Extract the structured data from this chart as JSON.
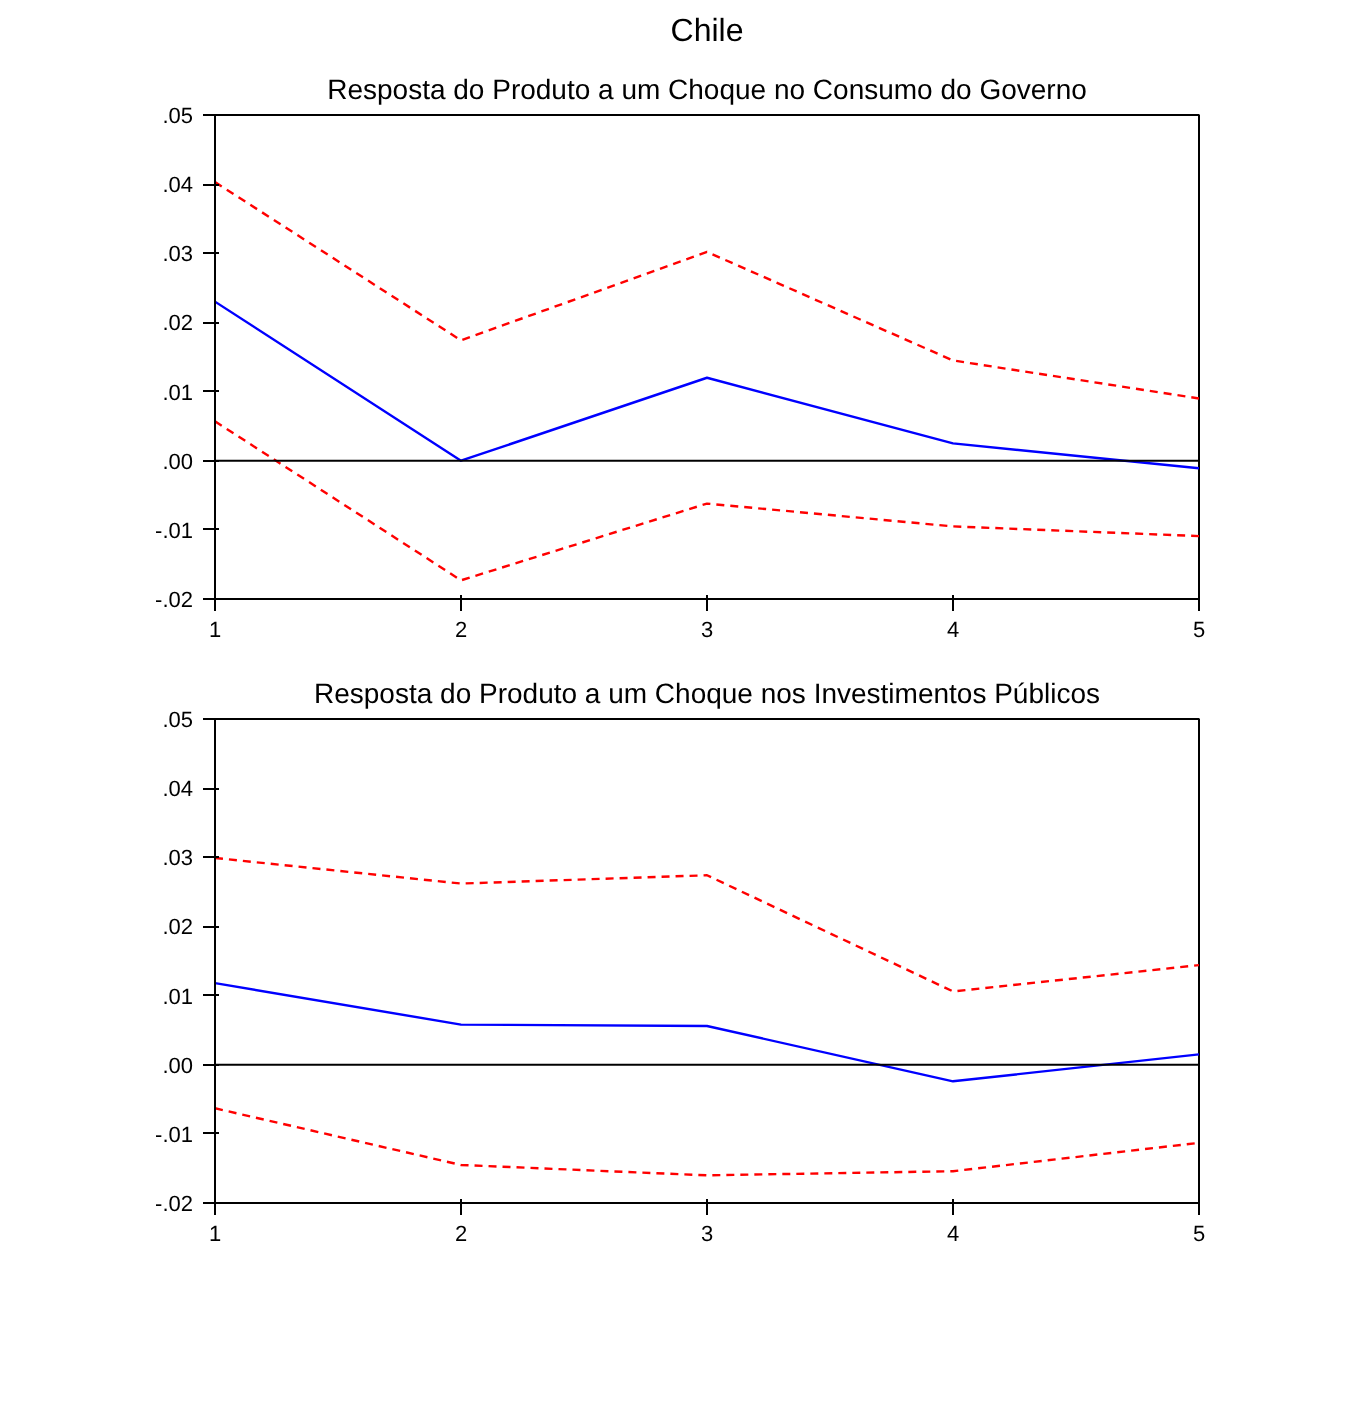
{
  "chart_data": [
    {
      "type": "line",
      "title": "Chile",
      "subtitle": "Resposta do Produto a um Choque no Consumo do Governo",
      "x": [
        1,
        2,
        3,
        4,
        5
      ],
      "xlim": [
        1,
        5
      ],
      "xticks": [
        1,
        2,
        3,
        4,
        5
      ],
      "ylim": [
        -0.02,
        0.05
      ],
      "yticks": [
        {
          "value": -0.02,
          "label": "-.02"
        },
        {
          "value": -0.01,
          "label": "-.01"
        },
        {
          "value": 0,
          "label": ".00"
        },
        {
          "value": 0.01,
          "label": ".01"
        },
        {
          "value": 0.02,
          "label": ".02"
        },
        {
          "value": 0.03,
          "label": ".03"
        },
        {
          "value": 0.04,
          "label": ".04"
        },
        {
          "value": 0.05,
          "label": ".05"
        }
      ],
      "grid": false,
      "marker": "none",
      "series": [
        {
          "color": "#ff0000",
          "line_style": "dashed",
          "values": [
            0.0403,
            0.0174,
            0.0302,
            0.0145,
            0.009
          ]
        },
        {
          "color": "#0000ff",
          "line_style": "solid",
          "values": [
            0.023,
            0.0,
            0.012,
            0.0025,
            -0.0011
          ]
        },
        {
          "color": "#ff0000",
          "line_style": "dashed",
          "values": [
            0.0057,
            -0.0173,
            -0.0062,
            -0.0095,
            -0.0109
          ]
        }
      ],
      "ref_lines": [
        {
          "axis": "y",
          "value": 0,
          "color": "#000000"
        }
      ]
    },
    {
      "type": "line",
      "title": "Resposta do Produto a um Choque nos Investimentos Públicos",
      "x": [
        1,
        2,
        3,
        4,
        5
      ],
      "xlim": [
        1,
        5
      ],
      "xticks": [
        1,
        2,
        3,
        4,
        5
      ],
      "ylim": [
        -0.02,
        0.05
      ],
      "yticks": [
        {
          "value": -0.02,
          "label": "-.02"
        },
        {
          "value": -0.01,
          "label": "-.01"
        },
        {
          "value": 0,
          "label": ".00"
        },
        {
          "value": 0.01,
          "label": ".01"
        },
        {
          "value": 0.02,
          "label": ".02"
        },
        {
          "value": 0.03,
          "label": ".03"
        },
        {
          "value": 0.04,
          "label": ".04"
        },
        {
          "value": 0.05,
          "label": ".05"
        }
      ],
      "grid": false,
      "marker": "none",
      "series": [
        {
          "color": "#ff0000",
          "line_style": "dashed",
          "values": [
            0.0299,
            0.0262,
            0.0274,
            0.0106,
            0.0144
          ]
        },
        {
          "color": "#0000ff",
          "line_style": "solid",
          "values": [
            0.0118,
            0.0058,
            0.0056,
            -0.0024,
            0.0015
          ]
        },
        {
          "color": "#ff0000",
          "line_style": "dashed",
          "values": [
            -0.0063,
            -0.0145,
            -0.016,
            -0.0154,
            -0.0113
          ]
        }
      ],
      "ref_lines": [
        {
          "axis": "y",
          "value": 0,
          "color": "#000000"
        }
      ]
    }
  ]
}
